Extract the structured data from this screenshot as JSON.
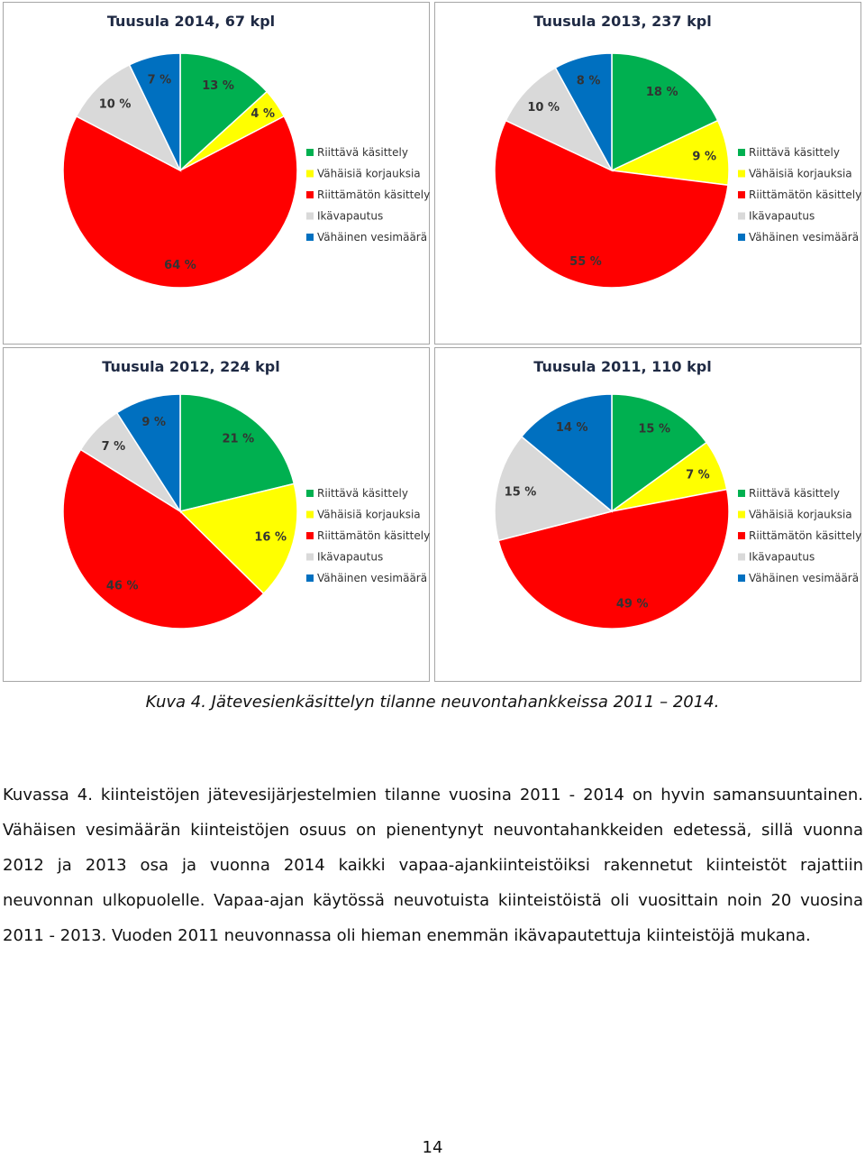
{
  "legend": [
    {
      "label": "Riittävä käsittely",
      "color": "#00b050"
    },
    {
      "label": "Vähäisiä korjauksia",
      "color": "#ffff00"
    },
    {
      "label": "Riittämätön käsittely",
      "color": "#ff0000"
    },
    {
      "label": "Ikävapautus",
      "color": "#d9d9d9"
    },
    {
      "label": "Vähäinen vesimäärä",
      "color": "#0070c0"
    }
  ],
  "chart_data": [
    {
      "type": "pie",
      "title": "Tuusula 2014, 67 kpl",
      "categories": [
        "Riittävä käsittely",
        "Vähäisiä korjauksia",
        "Riittämätön käsittely",
        "Ikävapautus",
        "Vähäinen vesimäärä"
      ],
      "values": [
        13,
        4,
        64,
        10,
        7
      ],
      "labels": [
        "13 %",
        "4 %",
        "64 %",
        "10 %",
        "7 %"
      ],
      "legend_position": "right"
    },
    {
      "type": "pie",
      "title": "Tuusula 2013, 237 kpl",
      "categories": [
        "Riittävä käsittely",
        "Vähäisiä korjauksia",
        "Riittämätön käsittely",
        "Ikävapautus",
        "Vähäinen vesimäärä"
      ],
      "values": [
        18,
        9,
        55,
        10,
        8
      ],
      "labels": [
        "18 %",
        "9 %",
        "55 %",
        "10 %",
        "8 %"
      ],
      "legend_position": "right"
    },
    {
      "type": "pie",
      "title": "Tuusula 2012, 224 kpl",
      "categories": [
        "Riittävä käsittely",
        "Vähäisiä korjauksia",
        "Riittämätön käsittely",
        "Ikävapautus",
        "Vähäinen vesimäärä"
      ],
      "values": [
        21,
        16,
        46,
        7,
        9
      ],
      "labels": [
        "21 %",
        "16 %",
        "46 %",
        "7 %",
        "9 %"
      ],
      "legend_position": "right"
    },
    {
      "type": "pie",
      "title": "Tuusula 2011, 110 kpl",
      "categories": [
        "Riittävä käsittely",
        "Vähäisiä korjauksia",
        "Riittämätön käsittely",
        "Ikävapautus",
        "Vähäinen vesimäärä"
      ],
      "values": [
        15,
        7,
        49,
        15,
        14
      ],
      "labels": [
        "15 %",
        "7 %",
        "49 %",
        "15 %",
        "14 %"
      ],
      "legend_position": "right"
    }
  ],
  "caption": "Kuva 4. Jätevesienkäsittelyn tilanne neuvontahankkeissa 2011 – 2014.",
  "body_text": "Kuvassa 4. kiinteistöjen jätevesijärjestelmien tilanne vuosina 2011 - 2014 on hyvin samansuuntainen. Vähäisen vesimäärän kiinteistöjen osuus on pienentynyt neuvontahankkeiden edetessä, sillä vuonna 2012 ja 2013 osa ja vuonna 2014 kaikki vapaa-ajankiinteistöiksi rakennetut kiinteistöt rajattiin neuvonnan ulkopuolelle. Vapaa-ajan käytössä neuvotuista kiinteistöistä oli vuosittain noin 20 vuosina 2011 - 2013. Vuoden 2011 neuvonnassa oli hieman enemmän ikävapautettuja kiinteistöjä mukana.",
  "page_number": "14"
}
